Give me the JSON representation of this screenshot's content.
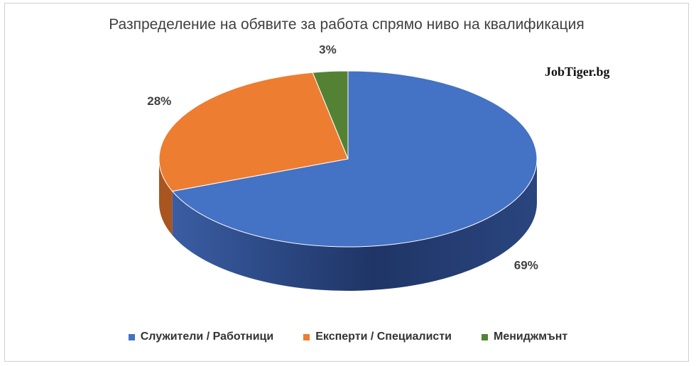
{
  "chart_data": {
    "type": "pie",
    "title": "Разпределение на обявите за работа спрямо ниво на квалификация",
    "watermark": "JobTiger.bg",
    "slices": [
      {
        "name": "Служители / Работници",
        "value": 69,
        "label": "69%",
        "color": "#4472C4",
        "side_color": "#2E4A85"
      },
      {
        "name": "Експерти / Специалисти",
        "value": 28,
        "label": "28%",
        "color": "#ED7D31",
        "side_color": "#A85520"
      },
      {
        "name": "Мениджмънт",
        "value": 3,
        "label": "3%",
        "color": "#548235",
        "side_color": "#3A5A24"
      }
    ],
    "legend_position": "bottom"
  }
}
